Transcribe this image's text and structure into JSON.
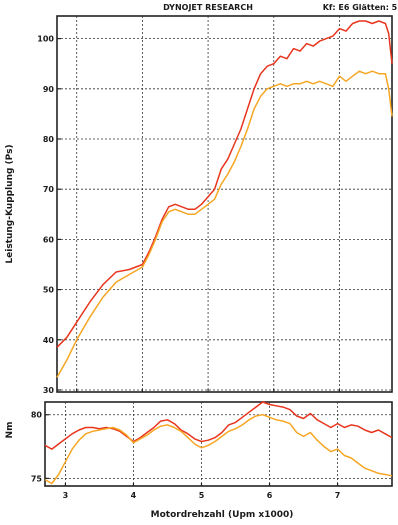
{
  "header": {
    "company": "DYNOJET RESEARCH",
    "info": "Kf: E6  Glätten: 5"
  },
  "chart_data": [
    {
      "type": "line",
      "ylabel": "Leistung-Kupplung (Ps)",
      "xlabel": "",
      "xlim": [
        2.7,
        7.8
      ],
      "ylim": [
        29.6,
        104.5
      ],
      "x_ticks": [
        3,
        4,
        5,
        6,
        7
      ],
      "y_ticks": [
        30,
        40,
        50,
        60,
        70,
        80,
        90,
        100
      ],
      "grid": true,
      "series": [
        {
          "color": "#e8351e",
          "x": [
            2.7,
            2.85,
            3.0,
            3.2,
            3.4,
            3.6,
            3.8,
            4.0,
            4.1,
            4.2,
            4.3,
            4.4,
            4.5,
            4.6,
            4.7,
            4.8,
            4.9,
            5.0,
            5.1,
            5.2,
            5.3,
            5.4,
            5.5,
            5.6,
            5.7,
            5.8,
            5.9,
            6.0,
            6.1,
            6.2,
            6.3,
            6.4,
            6.5,
            6.6,
            6.7,
            6.8,
            6.9,
            7.0,
            7.1,
            7.2,
            7.3,
            7.4,
            7.5,
            7.6,
            7.7,
            7.75,
            7.8
          ],
          "values": [
            38.5,
            40.5,
            43.5,
            47.5,
            51.0,
            53.5,
            54.0,
            55.0,
            57.5,
            60.5,
            64.0,
            66.5,
            67.0,
            66.5,
            66.0,
            66.0,
            67.0,
            68.5,
            70.0,
            74.0,
            76.0,
            79.0,
            82.0,
            86.0,
            90.0,
            93.0,
            94.5,
            95.0,
            96.5,
            96.0,
            98.0,
            97.5,
            99.0,
            98.5,
            99.5,
            100.0,
            100.5,
            102.0,
            101.5,
            103.0,
            103.5,
            103.5,
            103.0,
            103.5,
            103.0,
            101.0,
            95.0
          ]
        },
        {
          "color": "#f5a623",
          "x": [
            2.7,
            2.85,
            3.0,
            3.2,
            3.4,
            3.6,
            3.8,
            4.0,
            4.1,
            4.2,
            4.3,
            4.4,
            4.5,
            4.6,
            4.7,
            4.8,
            4.9,
            5.0,
            5.1,
            5.2,
            5.3,
            5.4,
            5.5,
            5.6,
            5.7,
            5.8,
            5.9,
            6.0,
            6.1,
            6.2,
            6.3,
            6.4,
            6.5,
            6.6,
            6.7,
            6.8,
            6.9,
            7.0,
            7.1,
            7.2,
            7.3,
            7.4,
            7.5,
            7.6,
            7.7,
            7.75,
            7.8
          ],
          "values": [
            32.5,
            36.0,
            40.0,
            44.5,
            48.5,
            51.5,
            53.0,
            54.5,
            57.0,
            60.0,
            63.5,
            65.5,
            66.0,
            65.5,
            65.0,
            65.0,
            66.0,
            67.0,
            68.0,
            71.0,
            73.0,
            75.5,
            78.5,
            82.0,
            86.0,
            88.5,
            90.0,
            90.5,
            91.0,
            90.5,
            91.0,
            91.0,
            91.5,
            91.0,
            91.5,
            91.0,
            90.5,
            92.5,
            91.5,
            92.5,
            93.5,
            93.0,
            93.5,
            93.0,
            93.0,
            90.0,
            84.5
          ]
        }
      ]
    },
    {
      "type": "line",
      "ylabel": "Nm",
      "xlabel": "Motordrehzahl (Upm x1000)",
      "xlim": [
        2.7,
        7.8
      ],
      "ylim": [
        74.4,
        81.0
      ],
      "x_ticks": [
        3,
        4,
        5,
        6,
        7
      ],
      "y_ticks": [
        75,
        80
      ],
      "grid": true,
      "series": [
        {
          "color": "#e8351e",
          "x": [
            2.7,
            2.8,
            2.9,
            3.0,
            3.1,
            3.2,
            3.3,
            3.4,
            3.5,
            3.6,
            3.7,
            3.8,
            3.9,
            4.0,
            4.1,
            4.2,
            4.3,
            4.4,
            4.5,
            4.6,
            4.7,
            4.8,
            4.9,
            5.0,
            5.1,
            5.2,
            5.3,
            5.4,
            5.5,
            5.6,
            5.7,
            5.8,
            5.9,
            6.0,
            6.1,
            6.2,
            6.3,
            6.4,
            6.5,
            6.6,
            6.7,
            6.8,
            6.9,
            7.0,
            7.1,
            7.2,
            7.3,
            7.4,
            7.5,
            7.6,
            7.7,
            7.8
          ],
          "values": [
            77.6,
            77.3,
            77.7,
            78.1,
            78.5,
            78.8,
            79.0,
            79.0,
            78.9,
            79.0,
            78.9,
            78.7,
            78.3,
            77.9,
            78.2,
            78.6,
            79.0,
            79.5,
            79.6,
            79.3,
            78.8,
            78.5,
            78.1,
            77.9,
            78.0,
            78.2,
            78.6,
            79.2,
            79.4,
            79.8,
            80.2,
            80.6,
            81.0,
            80.8,
            80.7,
            80.6,
            80.4,
            79.9,
            79.7,
            80.1,
            79.6,
            79.3,
            79.0,
            79.3,
            79.0,
            79.2,
            79.1,
            78.8,
            78.6,
            78.8,
            78.5,
            78.2
          ]
        },
        {
          "color": "#f5a623",
          "x": [
            2.7,
            2.8,
            2.9,
            3.0,
            3.1,
            3.2,
            3.3,
            3.4,
            3.5,
            3.6,
            3.7,
            3.8,
            3.9,
            4.0,
            4.1,
            4.2,
            4.3,
            4.4,
            4.5,
            4.6,
            4.7,
            4.8,
            4.9,
            5.0,
            5.1,
            5.2,
            5.3,
            5.4,
            5.5,
            5.6,
            5.7,
            5.8,
            5.9,
            6.0,
            6.1,
            6.2,
            6.3,
            6.4,
            6.5,
            6.6,
            6.7,
            6.8,
            6.9,
            7.0,
            7.1,
            7.2,
            7.3,
            7.4,
            7.5,
            7.6,
            7.7,
            7.8
          ],
          "values": [
            74.9,
            74.6,
            75.3,
            76.3,
            77.3,
            78.0,
            78.5,
            78.7,
            78.8,
            78.9,
            79.0,
            78.8,
            78.4,
            77.8,
            78.1,
            78.4,
            78.8,
            79.1,
            79.2,
            79.0,
            78.7,
            78.2,
            77.7,
            77.4,
            77.6,
            77.9,
            78.3,
            78.7,
            78.9,
            79.2,
            79.6,
            79.9,
            80.0,
            79.8,
            79.6,
            79.5,
            79.3,
            78.6,
            78.3,
            78.6,
            78.0,
            77.5,
            77.1,
            77.3,
            76.8,
            76.6,
            76.2,
            75.8,
            75.6,
            75.4,
            75.3,
            75.2
          ]
        }
      ]
    }
  ]
}
